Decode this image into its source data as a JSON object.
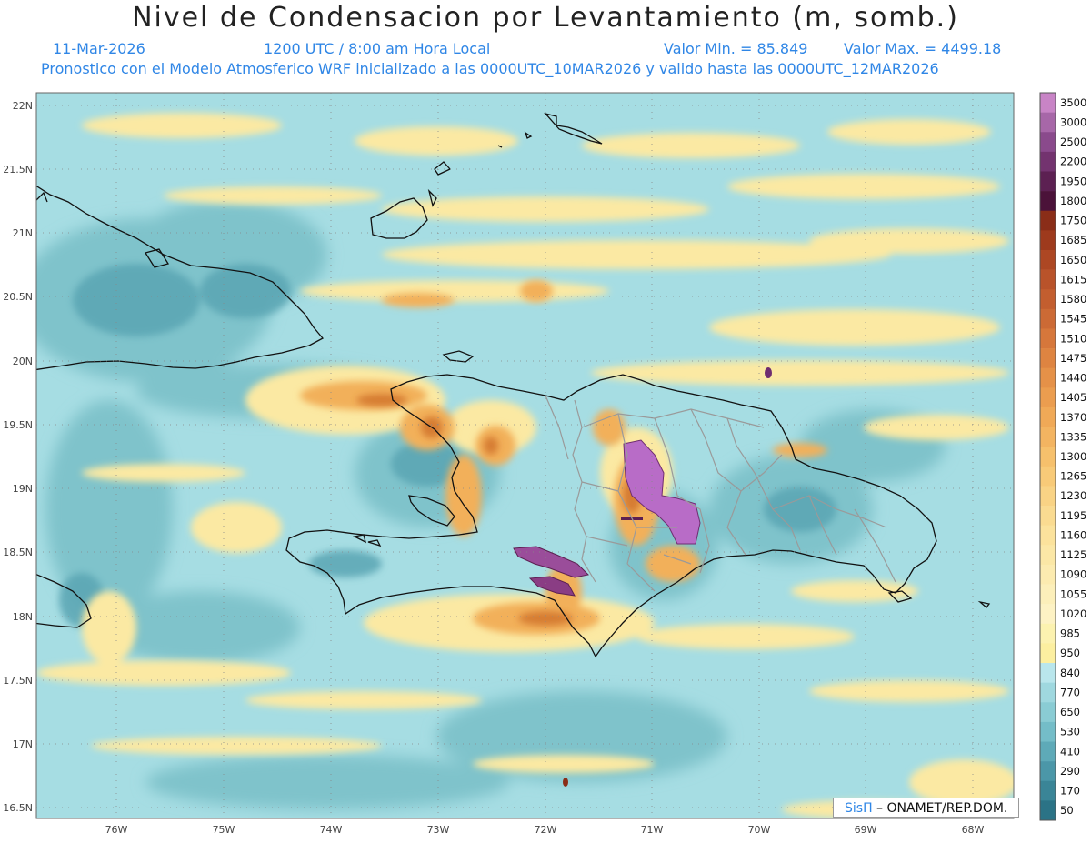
{
  "header": {
    "title": "Nivel de Condensacion por Levantamiento (m, somb.)",
    "date": "11-Mar-2026",
    "time": "1200 UTC / 8:00 am Hora Local",
    "min": "Valor Min. = 85.849",
    "max": "Valor Max. = 4499.18",
    "forecast": "Pronostico con el Modelo Atmosferico WRF inicializado a las 0000UTC_10MAR2026 y valido hasta las  0000UTC_12MAR2026"
  },
  "map": {
    "lat_labels": [
      "22N",
      "21.5N",
      "21N",
      "20.5N",
      "20N",
      "19.5N",
      "19N",
      "18.5N",
      "18N",
      "17.5N",
      "17N",
      "16.5N"
    ],
    "lon_labels": [
      "76W",
      "75W",
      "74W",
      "73W",
      "72W",
      "71W",
      "70W",
      "69W",
      "68W"
    ],
    "colors": {
      "ocean": "#a6dde3",
      "teal_mid": "#7fc3cb",
      "teal_dark": "#5aa5b3",
      "yellow": "#fbe9a3",
      "orange": "#f2b05a",
      "orange_dark": "#d3772d",
      "purple": "#b86cc7",
      "purple_dark": "#6e2d70"
    }
  },
  "colorbar": {
    "labels": [
      "3500",
      "3000",
      "2500",
      "2200",
      "1950",
      "1800",
      "1750",
      "1685",
      "1650",
      "1615",
      "1580",
      "1545",
      "1510",
      "1475",
      "1440",
      "1405",
      "1370",
      "1335",
      "1300",
      "1265",
      "1230",
      "1195",
      "1160",
      "1125",
      "1090",
      "1055",
      "1020",
      "985",
      "950",
      "840",
      "770",
      "650",
      "530",
      "410",
      "290",
      "170",
      "50"
    ],
    "colors": [
      "#c884c6",
      "#a767a8",
      "#8a4a8c",
      "#73336f",
      "#5c2052",
      "#4b1239",
      "#8a2d18",
      "#9e3a1d",
      "#ad4723",
      "#b9532a",
      "#c35e2f",
      "#cc6a35",
      "#d6773b",
      "#de8441",
      "#e59148",
      "#eb9d4f",
      "#f0a957",
      "#f3b461",
      "#f6c06c",
      "#f8ca78",
      "#f9d385",
      "#fadb91",
      "#fbe29c",
      "#fbe7a6",
      "#fcebb0",
      "#fcefba",
      "#fdf2c4",
      "#fcf2b0",
      "#fcefa0",
      "#b9e6ec",
      "#9fd8df",
      "#8accd4",
      "#74bdc8",
      "#5eaab8",
      "#4b97a8",
      "#3a8597",
      "#2b7386"
    ]
  },
  "credit": {
    "logo": "SisΠ",
    "text": " – ONAMET/REP.DOM."
  }
}
